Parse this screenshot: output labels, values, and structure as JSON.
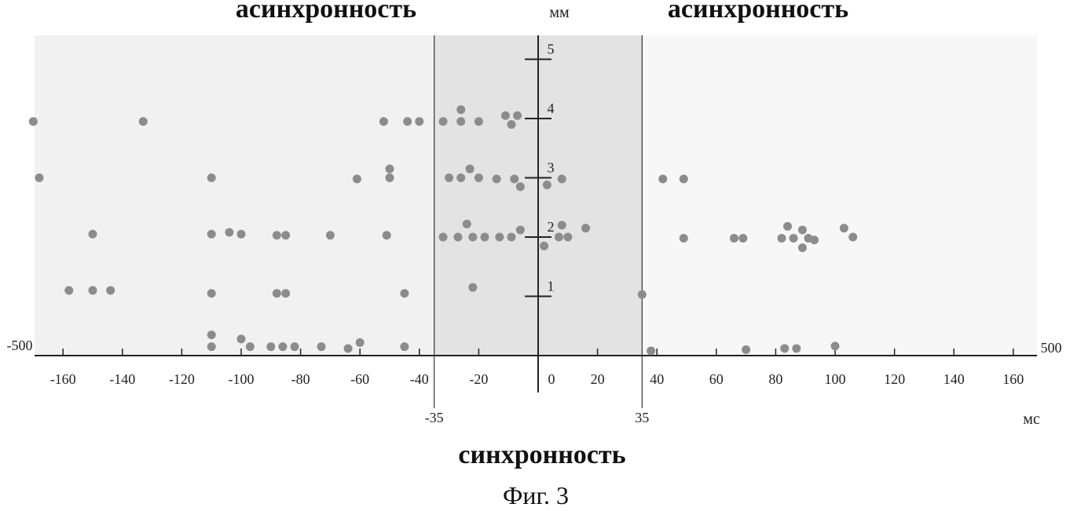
{
  "chart_data": {
    "type": "scatter",
    "title": "",
    "caption": "Фиг. 3",
    "annotations": {
      "left_zone": "асинхронность",
      "right_zone": "асинхронность",
      "center_zone": "синхронность",
      "left_bound_label": "-35",
      "right_bound_label": "35",
      "left_edge_label": "-500",
      "right_edge_label": "500"
    },
    "xlabel": "мс",
    "ylabel": "мм",
    "xlim": [
      -170,
      170
    ],
    "ylim": [
      0,
      5.3
    ],
    "synchrony_bounds": [
      -35,
      35
    ],
    "x_ticks": [
      {
        "value": -160,
        "label": "-160"
      },
      {
        "value": -140,
        "label": "-140"
      },
      {
        "value": -120,
        "label": "-120"
      },
      {
        "value": -100,
        "label": "-100"
      },
      {
        "value": -80,
        "label": "-80"
      },
      {
        "value": -60,
        "label": "-60"
      },
      {
        "value": -40,
        "label": "-40"
      },
      {
        "value": -20,
        "label": "-20"
      },
      {
        "value": 0,
        "label": "0"
      },
      {
        "value": 20,
        "label": "20"
      },
      {
        "value": 40,
        "label": "40"
      },
      {
        "value": 60,
        "label": "60"
      },
      {
        "value": 80,
        "label": "80"
      },
      {
        "value": 100,
        "label": "100"
      },
      {
        "value": 120,
        "label": "120"
      },
      {
        "value": 140,
        "label": "140"
      },
      {
        "value": 160,
        "label": "160"
      }
    ],
    "y_ticks": [
      {
        "value": 1,
        "label": "1"
      },
      {
        "value": 2,
        "label": "2"
      },
      {
        "value": 3,
        "label": "3"
      },
      {
        "value": 4,
        "label": "4"
      },
      {
        "value": 5,
        "label": "5"
      }
    ],
    "grid": false,
    "points": [
      {
        "x": -170,
        "y": 3.95
      },
      {
        "x": -168,
        "y": 3.0
      },
      {
        "x": -133,
        "y": 3.95
      },
      {
        "x": -52,
        "y": 3.95
      },
      {
        "x": -44,
        "y": 3.95
      },
      {
        "x": -40,
        "y": 3.95
      },
      {
        "x": -32,
        "y": 3.95
      },
      {
        "x": -26,
        "y": 3.95
      },
      {
        "x": -20,
        "y": 3.95
      },
      {
        "x": -26,
        "y": 4.15
      },
      {
        "x": -11,
        "y": 4.05
      },
      {
        "x": -7,
        "y": 4.05
      },
      {
        "x": -9,
        "y": 3.9
      },
      {
        "x": -110,
        "y": 3.0
      },
      {
        "x": -61,
        "y": 2.98
      },
      {
        "x": -50,
        "y": 3.15
      },
      {
        "x": -50,
        "y": 3.0
      },
      {
        "x": -30,
        "y": 3.0
      },
      {
        "x": -26,
        "y": 3.0
      },
      {
        "x": -23,
        "y": 3.15
      },
      {
        "x": -20,
        "y": 3.0
      },
      {
        "x": -14,
        "y": 2.98
      },
      {
        "x": -8,
        "y": 2.98
      },
      {
        "x": -6,
        "y": 2.85
      },
      {
        "x": 3,
        "y": 2.88
      },
      {
        "x": 8,
        "y": 2.98
      },
      {
        "x": 42,
        "y": 2.98
      },
      {
        "x": 49,
        "y": 2.98
      },
      {
        "x": -150,
        "y": 2.05
      },
      {
        "x": -110,
        "y": 2.05
      },
      {
        "x": -104,
        "y": 2.08
      },
      {
        "x": -100,
        "y": 2.05
      },
      {
        "x": -88,
        "y": 2.03
      },
      {
        "x": -85,
        "y": 2.03
      },
      {
        "x": -70,
        "y": 2.03
      },
      {
        "x": -51,
        "y": 2.03
      },
      {
        "x": -32,
        "y": 2.0
      },
      {
        "x": -27,
        "y": 2.0
      },
      {
        "x": -24,
        "y": 2.22
      },
      {
        "x": -22,
        "y": 2.0
      },
      {
        "x": -18,
        "y": 2.0
      },
      {
        "x": -13,
        "y": 2.0
      },
      {
        "x": -9,
        "y": 2.0
      },
      {
        "x": -6,
        "y": 2.12
      },
      {
        "x": 2,
        "y": 1.85
      },
      {
        "x": 7,
        "y": 2.0
      },
      {
        "x": 8,
        "y": 2.2
      },
      {
        "x": 10,
        "y": 2.0
      },
      {
        "x": 16,
        "y": 2.15
      },
      {
        "x": 49,
        "y": 1.98
      },
      {
        "x": 66,
        "y": 1.98
      },
      {
        "x": 69,
        "y": 1.98
      },
      {
        "x": 82,
        "y": 1.98
      },
      {
        "x": 84,
        "y": 2.18
      },
      {
        "x": 86,
        "y": 1.98
      },
      {
        "x": 89,
        "y": 2.12
      },
      {
        "x": 89,
        "y": 1.82
      },
      {
        "x": 91,
        "y": 1.98
      },
      {
        "x": 93,
        "y": 1.95
      },
      {
        "x": 103,
        "y": 2.15
      },
      {
        "x": 106,
        "y": 2.0
      },
      {
        "x": -158,
        "y": 1.1
      },
      {
        "x": -150,
        "y": 1.1
      },
      {
        "x": -144,
        "y": 1.1
      },
      {
        "x": -110,
        "y": 1.05
      },
      {
        "x": -88,
        "y": 1.05
      },
      {
        "x": -85,
        "y": 1.05
      },
      {
        "x": -45,
        "y": 1.05
      },
      {
        "x": -22,
        "y": 1.15
      },
      {
        "x": 35,
        "y": 1.03
      },
      {
        "x": -110,
        "y": 0.35
      },
      {
        "x": -110,
        "y": 0.15
      },
      {
        "x": -100,
        "y": 0.28
      },
      {
        "x": -97,
        "y": 0.15
      },
      {
        "x": -90,
        "y": 0.15
      },
      {
        "x": -86,
        "y": 0.15
      },
      {
        "x": -82,
        "y": 0.15
      },
      {
        "x": -73,
        "y": 0.15
      },
      {
        "x": -64,
        "y": 0.12
      },
      {
        "x": -60,
        "y": 0.22
      },
      {
        "x": -45,
        "y": 0.15
      },
      {
        "x": 38,
        "y": 0.08
      },
      {
        "x": 70,
        "y": 0.1
      },
      {
        "x": 83,
        "y": 0.12
      },
      {
        "x": 87,
        "y": 0.12
      },
      {
        "x": 100,
        "y": 0.16
      }
    ]
  }
}
